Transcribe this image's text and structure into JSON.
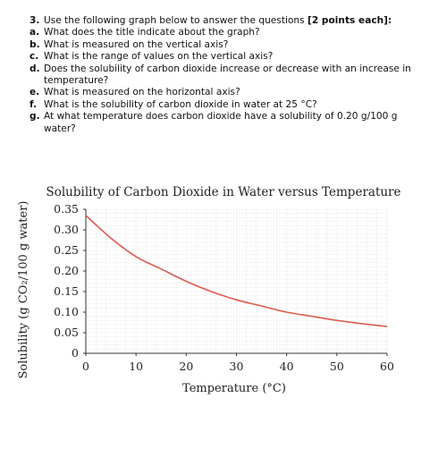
{
  "questions": {
    "heading_number": "3.",
    "heading_text": "Use the following graph below to answer the questions ",
    "heading_points": "[2 points each]:",
    "items": [
      {
        "letter": "a.",
        "text": "What does the title indicate about the graph?"
      },
      {
        "letter": "b.",
        "text": "What is measured on the vertical axis?"
      },
      {
        "letter": "c.",
        "text": "What is the range of values on the vertical axis?"
      },
      {
        "letter": "d.",
        "text": "Does the solubility of carbon dioxide increase or decrease with an increase in temperature?"
      },
      {
        "letter": "e.",
        "text": "What is measured on the horizontal axis?"
      },
      {
        "letter": "f.",
        "text": "What is the solubility of carbon dioxide in water at 25 °C?"
      },
      {
        "letter": "g.",
        "text": "At what temperature does carbon dioxide have a solubility of 0.20 g/100 g water?"
      }
    ]
  },
  "chart_data": {
    "type": "line",
    "title": "Solubility of Carbon Dioxide in Water versus Temperature",
    "xlabel": "Temperature (°C)",
    "ylabel": "Solubility (g CO₂/100 g water)",
    "xlim": [
      0,
      60
    ],
    "ylim": [
      0,
      0.35
    ],
    "x_ticks": [
      0,
      10,
      20,
      30,
      40,
      50,
      60
    ],
    "x_tick_labels": [
      "0",
      "10",
      "20",
      "30",
      "40",
      "50",
      "60"
    ],
    "y_ticks": [
      0,
      0.05,
      0.1,
      0.15,
      0.2,
      0.25,
      0.3,
      0.35
    ],
    "y_tick_labels": [
      "0",
      "0.05",
      "0.10",
      "0.15",
      "0.20",
      "0.25",
      "0.30",
      "0.35"
    ],
    "grid": true,
    "line_color": "#e05a4e",
    "series": [
      {
        "x": [
          0,
          5,
          10,
          15,
          20,
          25,
          30,
          35,
          40,
          45,
          50,
          55,
          60
        ],
        "values": [
          0.335,
          0.28,
          0.235,
          0.205,
          0.175,
          0.15,
          0.13,
          0.115,
          0.1,
          0.09,
          0.08,
          0.072,
          0.065
        ]
      }
    ]
  }
}
